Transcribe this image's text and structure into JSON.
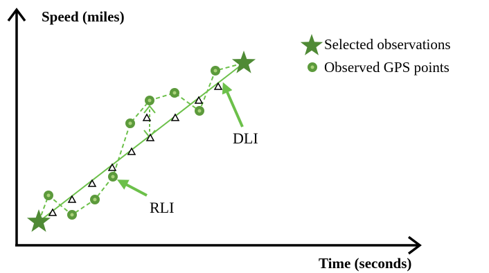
{
  "axes": {
    "y_label": "Speed (miles)",
    "x_label": "Time (seconds)"
  },
  "legend": {
    "selected": "Selected observations",
    "observed": "Observed GPS points"
  },
  "callouts": {
    "rli": "RLI",
    "dli": "DLI"
  },
  "colors": {
    "dark_green": "#4f8a35",
    "light_green": "#6cc04a",
    "point_fill": "#5c9a3c",
    "point_center": "#aad27a",
    "axis": "#000000"
  },
  "icons": {
    "selected": "star-icon",
    "observed": "dot-icon",
    "interpolated": "triangle-icon",
    "vertical_arrow": "double-arrow-icon"
  }
}
